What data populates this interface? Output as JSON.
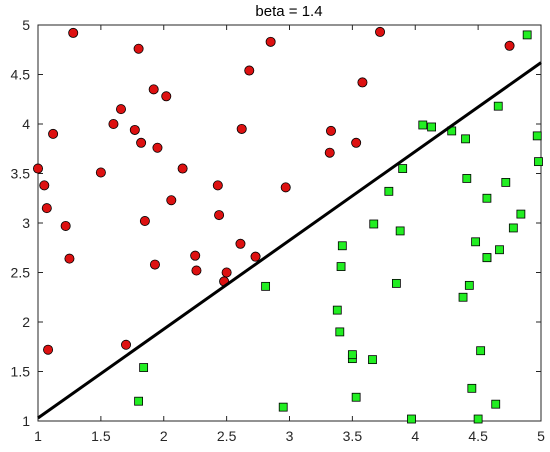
{
  "chart_data": {
    "type": "scatter",
    "title": "beta = 1.4",
    "xlabel": "",
    "ylabel": "",
    "xlim": [
      1,
      5
    ],
    "ylim": [
      1,
      5
    ],
    "xticks": [
      "1",
      "1.5",
      "2",
      "2.5",
      "3",
      "3.5",
      "4",
      "4.5",
      "5"
    ],
    "yticks": [
      "1",
      "1.5",
      "2",
      "2.5",
      "3",
      "3.5",
      "4",
      "4.5",
      "5"
    ],
    "grid": false,
    "legend": "none",
    "series": [
      {
        "marker": "circle",
        "color": "#dd1111",
        "x": [
          1.0,
          1.05,
          1.07,
          1.08,
          1.12,
          1.22,
          1.25,
          1.28,
          1.5,
          1.6,
          1.66,
          1.7,
          1.77,
          1.8,
          1.82,
          1.85,
          1.92,
          1.93,
          1.95,
          2.02,
          2.06,
          2.15,
          2.25,
          2.26,
          2.43,
          2.44,
          2.48,
          2.5,
          2.61,
          2.62,
          2.68,
          2.73,
          2.85,
          2.97,
          3.32,
          3.33,
          3.53,
          3.58,
          3.72,
          4.75
        ],
        "y": [
          3.55,
          3.38,
          3.15,
          1.72,
          3.9,
          2.97,
          2.64,
          4.92,
          3.51,
          4.0,
          4.15,
          1.77,
          3.94,
          4.76,
          3.81,
          3.02,
          4.35,
          2.58,
          3.76,
          4.28,
          3.23,
          3.55,
          2.67,
          2.52,
          3.38,
          3.08,
          2.41,
          2.5,
          2.79,
          3.95,
          4.54,
          2.66,
          4.83,
          3.36,
          3.71,
          3.93,
          3.81,
          4.42,
          4.93,
          4.79
        ]
      },
      {
        "marker": "square",
        "color": "#22ee22",
        "x": [
          1.8,
          1.84,
          2.81,
          2.95,
          3.38,
          3.4,
          3.41,
          3.42,
          3.5,
          3.5,
          3.53,
          3.66,
          3.67,
          3.79,
          3.85,
          3.88,
          3.9,
          3.97,
          4.06,
          4.13,
          4.29,
          4.38,
          4.4,
          4.41,
          4.43,
          4.45,
          4.48,
          4.5,
          4.52,
          4.57,
          4.57,
          4.57,
          4.64,
          4.66,
          4.67,
          4.72,
          4.78,
          4.84,
          4.89,
          4.97,
          4.98
        ],
        "y": [
          1.2,
          1.54,
          2.36,
          1.14,
          2.12,
          1.9,
          2.56,
          2.77,
          1.63,
          1.67,
          1.24,
          1.62,
          2.99,
          3.32,
          2.39,
          2.92,
          3.55,
          1.02,
          3.99,
          3.97,
          3.93,
          2.25,
          3.85,
          3.45,
          2.37,
          1.33,
          2.81,
          1.02,
          1.71,
          3.25,
          2.65,
          2.65,
          1.17,
          4.18,
          2.73,
          3.41,
          2.95,
          3.09,
          4.9,
          3.88,
          3.62
        ]
      }
    ],
    "lines": [
      {
        "name": "",
        "color": "#000000",
        "x": [
          1,
          5
        ],
        "y": [
          1.03,
          4.62
        ]
      }
    ]
  }
}
